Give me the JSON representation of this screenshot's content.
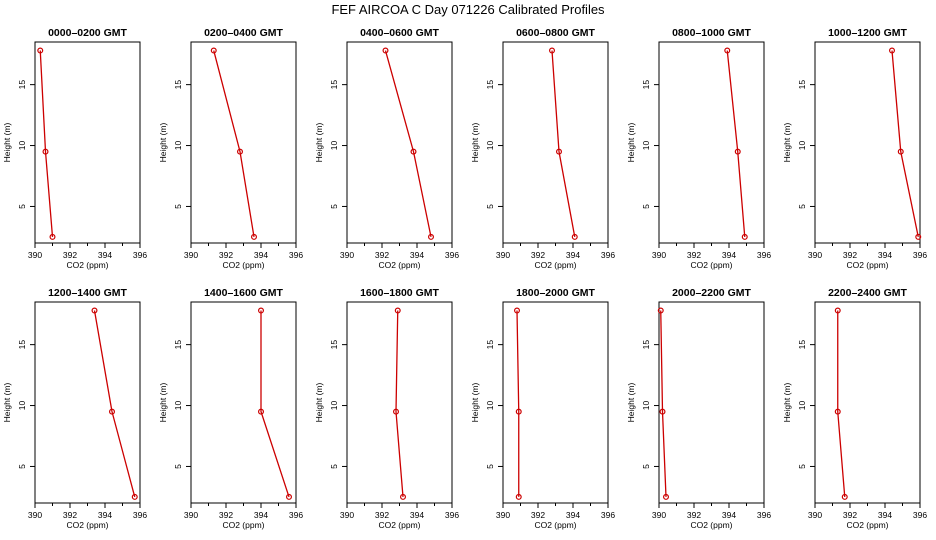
{
  "title": "FEF AIRCOA C  Day 071226  Calibrated Profiles",
  "style": {
    "line_color": "#cc0000",
    "point_color": "#cc0000"
  },
  "chart_data": [
    {
      "type": "line",
      "title": "0000–0200 GMT",
      "xlabel": "CO2 (ppm)",
      "ylabel": "Height (m)",
      "xlim": [
        390,
        396
      ],
      "ylim": [
        2,
        18.5
      ],
      "xticks": [
        390,
        392,
        394,
        396
      ],
      "yticks": [
        5,
        10,
        15
      ],
      "series": [
        {
          "x": [
            390.3,
            390.6,
            391.0
          ],
          "y": [
            17.8,
            9.5,
            2.5
          ]
        }
      ]
    },
    {
      "type": "line",
      "title": "0200–0400 GMT",
      "xlabel": "CO2 (ppm)",
      "ylabel": "Height (m)",
      "xlim": [
        390,
        396
      ],
      "ylim": [
        2,
        18.5
      ],
      "xticks": [
        390,
        392,
        394,
        396
      ],
      "yticks": [
        5,
        10,
        15
      ],
      "series": [
        {
          "x": [
            391.3,
            392.8,
            393.6
          ],
          "y": [
            17.8,
            9.5,
            2.5
          ]
        }
      ]
    },
    {
      "type": "line",
      "title": "0400–0600 GMT",
      "xlabel": "CO2 (ppm)",
      "ylabel": "Height (m)",
      "xlim": [
        390,
        396
      ],
      "ylim": [
        2,
        18.5
      ],
      "xticks": [
        390,
        392,
        394,
        396
      ],
      "yticks": [
        5,
        10,
        15
      ],
      "series": [
        {
          "x": [
            392.2,
            393.8,
            394.8
          ],
          "y": [
            17.8,
            9.5,
            2.5
          ]
        }
      ]
    },
    {
      "type": "line",
      "title": "0600–0800 GMT",
      "xlabel": "CO2 (ppm)",
      "ylabel": "Height (m)",
      "xlim": [
        390,
        396
      ],
      "ylim": [
        2,
        18.5
      ],
      "xticks": [
        390,
        392,
        394,
        396
      ],
      "yticks": [
        5,
        10,
        15
      ],
      "series": [
        {
          "x": [
            392.8,
            393.2,
            394.1
          ],
          "y": [
            17.8,
            9.5,
            2.5
          ]
        }
      ]
    },
    {
      "type": "line",
      "title": "0800–1000 GMT",
      "xlabel": "CO2 (ppm)",
      "ylabel": "Height (m)",
      "xlim": [
        390,
        396
      ],
      "ylim": [
        2,
        18.5
      ],
      "xticks": [
        390,
        392,
        394,
        396
      ],
      "yticks": [
        5,
        10,
        15
      ],
      "series": [
        {
          "x": [
            393.9,
            394.5,
            394.9
          ],
          "y": [
            17.8,
            9.5,
            2.5
          ]
        }
      ]
    },
    {
      "type": "line",
      "title": "1000–1200 GMT",
      "xlabel": "CO2 (ppm)",
      "ylabel": "Height (m)",
      "xlim": [
        390,
        396
      ],
      "ylim": [
        2,
        18.5
      ],
      "xticks": [
        390,
        392,
        394,
        396
      ],
      "yticks": [
        5,
        10,
        15
      ],
      "series": [
        {
          "x": [
            394.4,
            394.9,
            395.9
          ],
          "y": [
            17.8,
            9.5,
            2.5
          ]
        }
      ]
    },
    {
      "type": "line",
      "title": "1200–1400 GMT",
      "xlabel": "CO2 (ppm)",
      "ylabel": "Height (m)",
      "xlim": [
        390,
        396
      ],
      "ylim": [
        2,
        18.5
      ],
      "xticks": [
        390,
        392,
        394,
        396
      ],
      "yticks": [
        5,
        10,
        15
      ],
      "series": [
        {
          "x": [
            393.4,
            394.4,
            395.7
          ],
          "y": [
            17.8,
            9.5,
            2.5
          ]
        }
      ]
    },
    {
      "type": "line",
      "title": "1400–1600 GMT",
      "xlabel": "CO2 (ppm)",
      "ylabel": "Height (m)",
      "xlim": [
        390,
        396
      ],
      "ylim": [
        2,
        18.5
      ],
      "xticks": [
        390,
        392,
        394,
        396
      ],
      "yticks": [
        5,
        10,
        15
      ],
      "series": [
        {
          "x": [
            394.0,
            394.0,
            395.6
          ],
          "y": [
            17.8,
            9.5,
            2.5
          ]
        }
      ]
    },
    {
      "type": "line",
      "title": "1600–1800 GMT",
      "xlabel": "CO2 (ppm)",
      "ylabel": "Height (m)",
      "xlim": [
        390,
        396
      ],
      "ylim": [
        2,
        18.5
      ],
      "xticks": [
        390,
        392,
        394,
        396
      ],
      "yticks": [
        5,
        10,
        15
      ],
      "series": [
        {
          "x": [
            392.9,
            392.8,
            393.2
          ],
          "y": [
            17.8,
            9.5,
            2.5
          ]
        }
      ]
    },
    {
      "type": "line",
      "title": "1800–2000 GMT",
      "xlabel": "CO2 (ppm)",
      "ylabel": "Height (m)",
      "xlim": [
        390,
        396
      ],
      "ylim": [
        2,
        18.5
      ],
      "xticks": [
        390,
        392,
        394,
        396
      ],
      "yticks": [
        5,
        10,
        15
      ],
      "series": [
        {
          "x": [
            390.8,
            390.9,
            390.9
          ],
          "y": [
            17.8,
            9.5,
            2.5
          ]
        }
      ]
    },
    {
      "type": "line",
      "title": "2000–2200 GMT",
      "xlabel": "CO2 (ppm)",
      "ylabel": "Height (m)",
      "xlim": [
        390,
        396
      ],
      "ylim": [
        2,
        18.5
      ],
      "xticks": [
        390,
        392,
        394,
        396
      ],
      "yticks": [
        5,
        10,
        15
      ],
      "series": [
        {
          "x": [
            390.1,
            390.2,
            390.4
          ],
          "y": [
            17.8,
            9.5,
            2.5
          ]
        }
      ]
    },
    {
      "type": "line",
      "title": "2200–2400 GMT",
      "xlabel": "CO2 (ppm)",
      "ylabel": "Height (m)",
      "xlim": [
        390,
        396
      ],
      "ylim": [
        2,
        18.5
      ],
      "xticks": [
        390,
        392,
        394,
        396
      ],
      "yticks": [
        5,
        10,
        15
      ],
      "series": [
        {
          "x": [
            391.3,
            391.3,
            391.7
          ],
          "y": [
            17.8,
            9.5,
            2.5
          ]
        }
      ]
    }
  ]
}
